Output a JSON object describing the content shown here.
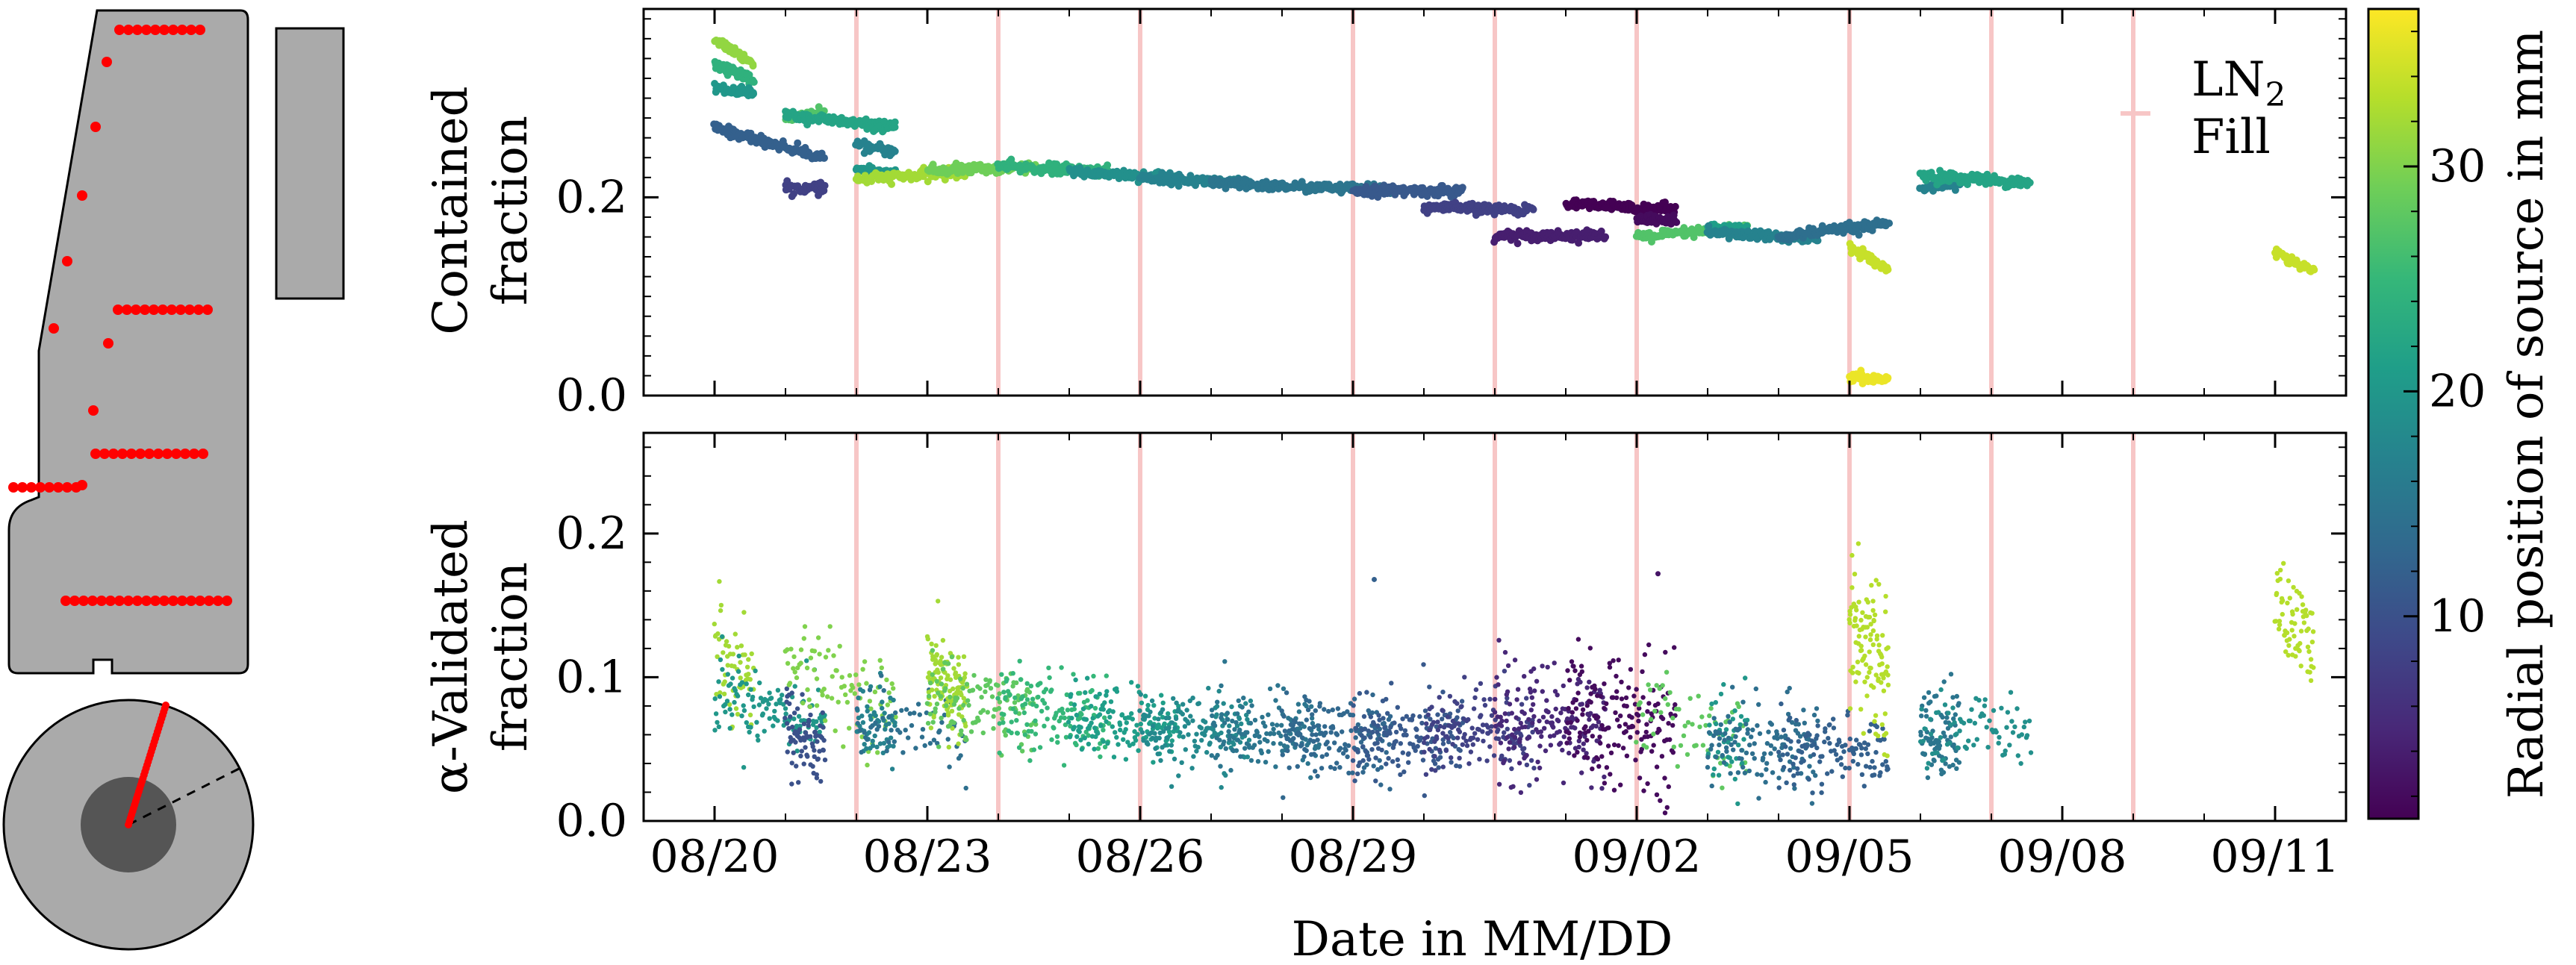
{
  "chart_data": [
    {
      "type": "scatter",
      "panel": "top",
      "ylabel_lines": [
        "Contained",
        "fraction"
      ],
      "xlabel": "",
      "ylim": [
        0,
        0.39
      ],
      "yticks": [
        0.0,
        0.2
      ],
      "ytick_labels": [
        "0.0",
        "0.2"
      ],
      "xlim": [
        "08/19",
        "09/12"
      ],
      "xticks": [
        "08/20",
        "08/23",
        "08/26",
        "08/29",
        "09/02",
        "09/05",
        "09/08",
        "09/11"
      ],
      "show_xtick_labels": false,
      "fill_lines": [
        "08/22",
        "08/24",
        "08/26",
        "08/29",
        "08/31",
        "09/02",
        "09/05",
        "09/07",
        "09/09"
      ],
      "legend": {
        "label_main": "LN",
        "label_sub": "2",
        "label_line2": "Fill",
        "color": "#f7c6c6",
        "placement": "top-right"
      },
      "segments": [
        {
          "x_range": [
            "08/20",
            "08/20"
          ],
          "y": [
            0.36,
            0.335
          ],
          "r": 31
        },
        {
          "x_range": [
            "08/20",
            "08/20"
          ],
          "y": [
            0.335,
            0.318
          ],
          "r": 24
        },
        {
          "x_range": [
            "08/20",
            "08/20"
          ],
          "y": [
            0.31,
            0.305
          ],
          "r": 20
        },
        {
          "x_range": [
            "08/20",
            "08/21"
          ],
          "y": [
            0.27,
            0.24
          ],
          "r": 12
        },
        {
          "x_range": [
            "08/21",
            "08/21"
          ],
          "y": [
            0.21,
            0.208
          ],
          "r": 8
        },
        {
          "x_range": [
            "08/21",
            "08/21"
          ],
          "y": [
            0.28,
            0.285
          ],
          "r": 27
        },
        {
          "x_range": [
            "08/21",
            "08/22"
          ],
          "y": [
            0.283,
            0.27
          ],
          "r": 22
        },
        {
          "x_range": [
            "08/22",
            "08/22"
          ],
          "y": [
            0.252,
            0.246
          ],
          "r": 17
        },
        {
          "x_range": [
            "08/22",
            "08/22"
          ],
          "y": [
            0.228,
            0.225
          ],
          "r": 20
        },
        {
          "x_range": [
            "08/22",
            "08/23"
          ],
          "y": [
            0.218,
            0.225
          ],
          "r": 32
        },
        {
          "x_range": [
            "08/23",
            "08/24"
          ],
          "y": [
            0.227,
            0.231
          ],
          "r": 29
        },
        {
          "x_range": [
            "08/24",
            "08/25"
          ],
          "y": [
            0.231,
            0.226
          ],
          "r": 24
        },
        {
          "x_range": [
            "08/25",
            "08/26"
          ],
          "y": [
            0.226,
            0.22
          ],
          "r": 19
        },
        {
          "x_range": [
            "08/26",
            "08/27"
          ],
          "y": [
            0.22,
            0.214
          ],
          "r": 17
        },
        {
          "x_range": [
            "08/27",
            "08/29"
          ],
          "y": [
            0.214,
            0.207
          ],
          "r": 15
        },
        {
          "x_range": [
            "08/29",
            "08/30"
          ],
          "y": [
            0.207,
            0.206
          ],
          "r": 11
        },
        {
          "x_range": [
            "08/30",
            "08/31"
          ],
          "y": [
            0.19,
            0.187
          ],
          "r": 8
        },
        {
          "x_range": [
            "08/31",
            "09/01"
          ],
          "y": [
            0.162,
            0.161
          ],
          "r": 4
        },
        {
          "x_range": [
            "09/01",
            "09/02"
          ],
          "y": [
            0.193,
            0.188
          ],
          "r": 1
        },
        {
          "x_range": [
            "09/02",
            "09/02"
          ],
          "y": [
            0.18,
            0.175
          ],
          "r": 2
        },
        {
          "x_range": [
            "09/02",
            "09/03"
          ],
          "y": [
            0.16,
            0.169
          ],
          "r": 27
        },
        {
          "x_range": [
            "09/03",
            "09/03"
          ],
          "y": [
            0.17,
            0.167
          ],
          "r": 21
        },
        {
          "x_range": [
            "09/03",
            "09/04"
          ],
          "y": [
            0.165,
            0.157
          ],
          "r": 17
        },
        {
          "x_range": [
            "09/04",
            "09/05"
          ],
          "y": [
            0.16,
            0.173
          ],
          "r": 14
        },
        {
          "x_range": [
            "09/05",
            "09/05"
          ],
          "y": [
            0.15,
            0.125
          ],
          "r": 34
        },
        {
          "x_range": [
            "09/05",
            "09/05"
          ],
          "y": [
            0.018,
            0.016
          ],
          "r": 36
        },
        {
          "x_range": [
            "09/06",
            "09/06"
          ],
          "y": [
            0.21,
            0.212
          ],
          "r": 17
        },
        {
          "x_range": [
            "09/06",
            "09/07"
          ],
          "y": [
            0.222,
            0.215
          ],
          "r": 22
        },
        {
          "x_range": [
            "09/11",
            "09/11"
          ],
          "y": [
            0.145,
            0.125
          ],
          "r": 34
        }
      ]
    },
    {
      "type": "scatter",
      "panel": "bottom",
      "ylabel_lines": [
        "α-Validated",
        "fraction"
      ],
      "xlabel": "Date in MM/DD",
      "ylim": [
        0,
        0.27
      ],
      "yticks": [
        0.0,
        0.1,
        0.2
      ],
      "ytick_labels": [
        "0.0",
        "0.1",
        "0.2"
      ],
      "xlim": [
        "08/19",
        "09/12"
      ],
      "xticks": [
        "08/20",
        "08/23",
        "08/26",
        "08/29",
        "09/02",
        "09/05",
        "09/08",
        "09/11"
      ],
      "xtick_labels": [
        "08/20",
        "08/23",
        "08/26",
        "08/29",
        "09/02",
        "09/05",
        "09/08",
        "09/11"
      ],
      "show_xtick_labels": true,
      "fill_lines": [
        "08/22",
        "08/24",
        "08/26",
        "08/29",
        "08/31",
        "09/02",
        "09/05",
        "09/07",
        "09/09"
      ],
      "outliers": [
        {
          "x": "08/29",
          "y": 0.168,
          "r": 12
        },
        {
          "x": "09/02",
          "y": 0.172,
          "r": 3
        }
      ],
      "segments": [
        {
          "x_range": [
            "08/20",
            "08/20"
          ],
          "y": [
            0.125,
            0.095
          ],
          "r": 32,
          "spread": 0.018,
          "n": 60
        },
        {
          "x_range": [
            "08/20",
            "08/21"
          ],
          "y": [
            0.09,
            0.07
          ],
          "r": 20,
          "spread": 0.014,
          "n": 120
        },
        {
          "x_range": [
            "08/21",
            "08/21"
          ],
          "y": [
            0.065,
            0.05
          ],
          "r": 10,
          "spread": 0.016,
          "n": 80
        },
        {
          "x_range": [
            "08/21",
            "08/22"
          ],
          "y": [
            0.11,
            0.075
          ],
          "r": 30,
          "spread": 0.015,
          "n": 90
        },
        {
          "x_range": [
            "08/22",
            "08/22"
          ],
          "y": [
            0.075,
            0.065
          ],
          "r": 17,
          "spread": 0.014,
          "n": 60
        },
        {
          "x_range": [
            "08/22",
            "08/23"
          ],
          "y": [
            0.065,
            0.062
          ],
          "r": 14,
          "spread": 0.014,
          "n": 60
        },
        {
          "x_range": [
            "08/23",
            "08/23"
          ],
          "y": [
            0.1,
            0.085
          ],
          "r": 32,
          "spread": 0.016,
          "n": 120
        },
        {
          "x_range": [
            "08/23",
            "08/24"
          ],
          "y": [
            0.085,
            0.078
          ],
          "r": 28,
          "spread": 0.015,
          "n": 120
        },
        {
          "x_range": [
            "08/24",
            "08/25"
          ],
          "y": [
            0.078,
            0.07
          ],
          "r": 25,
          "spread": 0.014,
          "n": 130
        },
        {
          "x_range": [
            "08/25",
            "08/26"
          ],
          "y": [
            0.07,
            0.065
          ],
          "r": 21,
          "spread": 0.013,
          "n": 140
        },
        {
          "x_range": [
            "08/26",
            "08/27"
          ],
          "y": [
            0.065,
            0.062
          ],
          "r": 18,
          "spread": 0.013,
          "n": 140
        },
        {
          "x_range": [
            "08/27",
            "08/28"
          ],
          "y": [
            0.062,
            0.06
          ],
          "r": 15,
          "spread": 0.013,
          "n": 140
        },
        {
          "x_range": [
            "08/28",
            "08/29"
          ],
          "y": [
            0.06,
            0.058
          ],
          "r": 13,
          "spread": 0.014,
          "n": 150
        },
        {
          "x_range": [
            "08/29",
            "08/30"
          ],
          "y": [
            0.058,
            0.06
          ],
          "r": 11,
          "spread": 0.015,
          "n": 150
        },
        {
          "x_range": [
            "08/30",
            "08/31"
          ],
          "y": [
            0.06,
            0.064
          ],
          "r": 8,
          "spread": 0.017,
          "n": 150
        },
        {
          "x_range": [
            "08/31",
            "09/01"
          ],
          "y": [
            0.066,
            0.07
          ],
          "r": 5,
          "spread": 0.02,
          "n": 170
        },
        {
          "x_range": [
            "09/01",
            "09/02"
          ],
          "y": [
            0.07,
            0.065
          ],
          "r": 2,
          "spread": 0.022,
          "n": 170
        },
        {
          "x_range": [
            "09/02",
            "09/03"
          ],
          "y": [
            0.075,
            0.06
          ],
          "r": 28,
          "spread": 0.018,
          "n": 60
        },
        {
          "x_range": [
            "09/03",
            "09/03"
          ],
          "y": [
            0.06,
            0.055
          ],
          "r": 20,
          "spread": 0.016,
          "n": 40
        },
        {
          "x_range": [
            "09/03",
            "09/04"
          ],
          "y": [
            0.055,
            0.05
          ],
          "r": 14,
          "spread": 0.015,
          "n": 120
        },
        {
          "x_range": [
            "09/04",
            "09/05"
          ],
          "y": [
            0.05,
            0.048
          ],
          "r": 12,
          "spread": 0.014,
          "n": 120
        },
        {
          "x_range": [
            "09/05",
            "09/05"
          ],
          "y": [
            0.14,
            0.1
          ],
          "r": 33,
          "spread": 0.025,
          "n": 110
        },
        {
          "x_range": [
            "09/06",
            "09/06"
          ],
          "y": [
            0.06,
            0.06
          ],
          "r": 15,
          "spread": 0.015,
          "n": 80
        },
        {
          "x_range": [
            "09/06",
            "09/07"
          ],
          "y": [
            0.065,
            0.062
          ],
          "r": 19,
          "spread": 0.014,
          "n": 80
        },
        {
          "x_range": [
            "09/11",
            "09/11"
          ],
          "y": [
            0.15,
            0.12
          ],
          "r": 33,
          "spread": 0.016,
          "n": 70
        }
      ]
    }
  ],
  "colorbar": {
    "label": "Radial position of source in mm",
    "range": [
      1,
      37
    ],
    "ticks": [
      10,
      20,
      30
    ],
    "tick_labels": [
      "10",
      "20",
      "30"
    ],
    "colormap": "viridis",
    "colormap_stops": [
      "#440154",
      "#482878",
      "#3e4989",
      "#31688e",
      "#26828e",
      "#1f9e89",
      "#35b779",
      "#6ece58",
      "#b5de2b",
      "#fde725"
    ]
  },
  "detector_diagram": {
    "body_color": "#aaaaaa",
    "point_color": "#ff0000",
    "core_color": "#555555"
  }
}
